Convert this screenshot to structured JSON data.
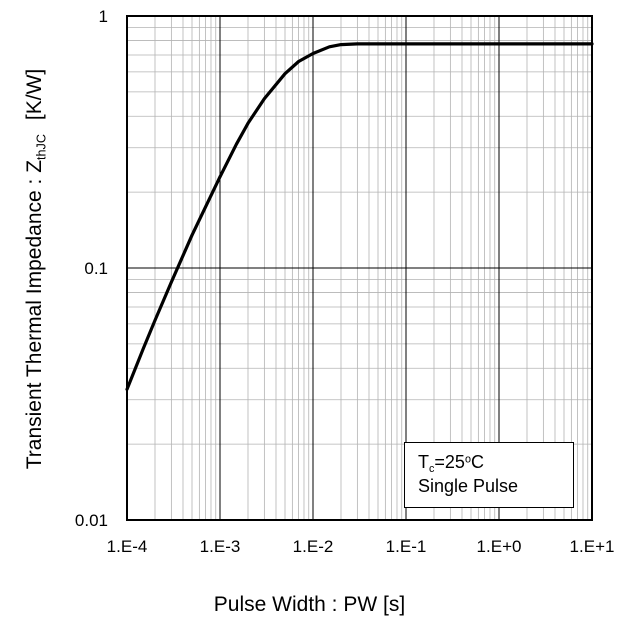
{
  "chart_data": {
    "type": "line",
    "xscale": "log",
    "yscale": "log",
    "xlim": [
      0.0001,
      10
    ],
    "ylim": [
      0.01,
      1
    ],
    "x_ticks": [
      {
        "value": 0.0001,
        "label": "1.E-4"
      },
      {
        "value": 0.001,
        "label": "1.E-3"
      },
      {
        "value": 0.01,
        "label": "1.E-2"
      },
      {
        "value": 0.1,
        "label": "1.E-1"
      },
      {
        "value": 1,
        "label": "1.E+0"
      },
      {
        "value": 10,
        "label": "1.E+1"
      }
    ],
    "y_ticks": [
      {
        "value": 0.01,
        "label": "0.01"
      },
      {
        "value": 0.1,
        "label": "0.1"
      },
      {
        "value": 1,
        "label": "1"
      }
    ],
    "grid": true,
    "xlabel": "Pulse Width : PW [s]",
    "ylabel": {
      "text_before": "Transient Thermal  Impedance : Z",
      "subscript": "thJC",
      "unit": "[K/W]"
    },
    "annotation": {
      "line1_main": "T",
      "line1_sub": "c",
      "line1_rest": "=25",
      "line1_sup": "o",
      "line1_end": "C",
      "line2": "Single Pulse"
    },
    "series": [
      {
        "color": "#000000",
        "x": [
          0.0001,
          0.00015,
          0.0002,
          0.0003,
          0.0005,
          0.0007,
          0.001,
          0.0015,
          0.002,
          0.003,
          0.005,
          0.007,
          0.01,
          0.015,
          0.02,
          0.03,
          0.05,
          0.1,
          0.3,
          1,
          3,
          10
        ],
        "y": [
          0.033,
          0.048,
          0.062,
          0.088,
          0.135,
          0.175,
          0.23,
          0.31,
          0.375,
          0.47,
          0.59,
          0.66,
          0.71,
          0.755,
          0.77,
          0.775,
          0.775,
          0.775,
          0.775,
          0.775,
          0.775,
          0.775
        ]
      }
    ]
  }
}
